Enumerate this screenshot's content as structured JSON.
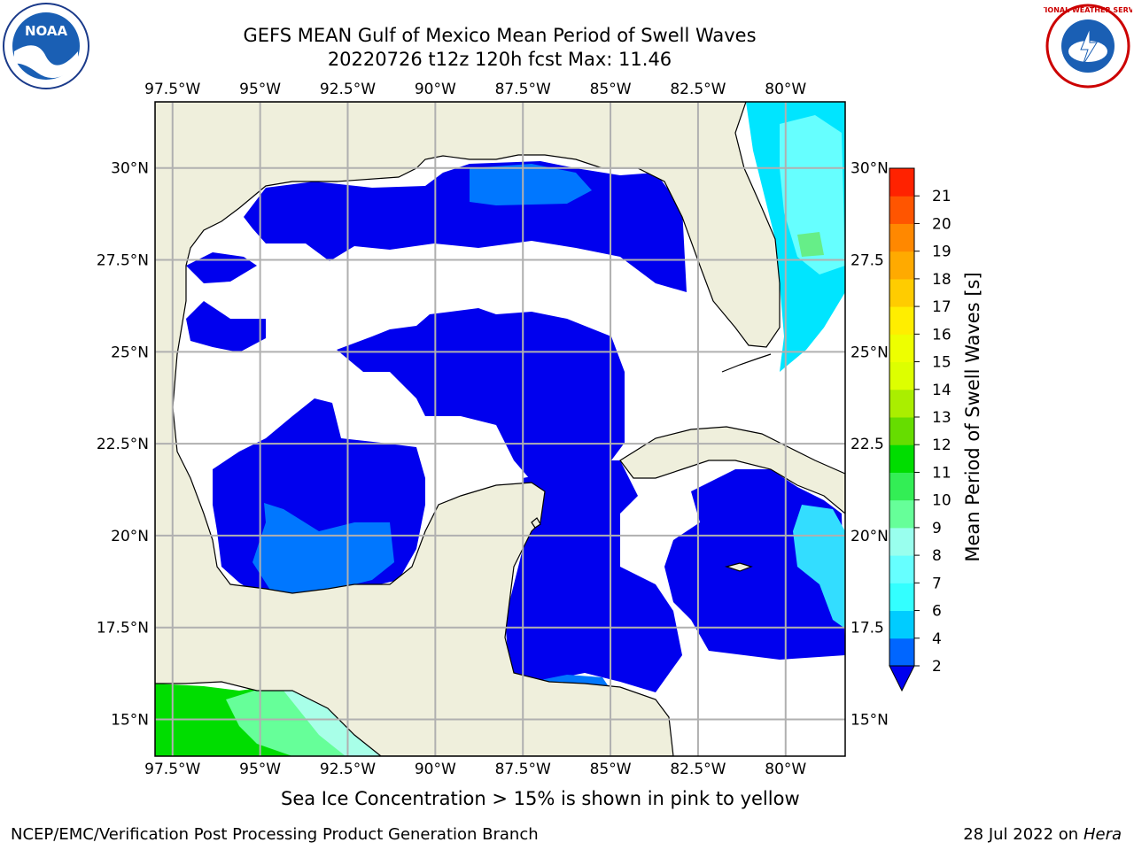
{
  "title": {
    "line1": "GEFS MEAN Gulf of Mexico Mean Period of Swell Waves",
    "line2": "20220726 t12z 120h fcst   Max: 11.46"
  },
  "logos": {
    "left": {
      "name": "noaa-logo",
      "text": "NOAA"
    },
    "right": {
      "name": "nws-logo",
      "text": "NATIONAL WEATHER SERVICE"
    }
  },
  "map": {
    "lon_range": [
      -98,
      -78.3
    ],
    "lat_range": [
      14,
      31.8
    ],
    "lon_ticks": [
      "97.5°W",
      "95°W",
      "92.5°W",
      "90°W",
      "87.5°W",
      "85°W",
      "82.5°W",
      "80°W"
    ],
    "lat_ticks_left": [
      "30°N",
      "27.5°N",
      "25°N",
      "22.5°N",
      "20°N",
      "17.5°N",
      "15°N"
    ],
    "lat_ticks_right": [
      "30°N",
      "27.5",
      "25°N",
      "22.5",
      "20°N",
      "17.5",
      "15°N"
    ],
    "colors": {
      "land": "#efefdc",
      "gridline": "#b0b0b0",
      "coast": "#000000",
      "swell_2_4": "#0000ee",
      "swell_4_6": "#0077ff",
      "swell_6_7": "#00e5ff",
      "swell_7_8": "#66ffff",
      "swell_8_9": "#a8ffe8",
      "swell_9_10": "#66ff99",
      "swell_10_11": "#33ff33",
      "swell_11_12": "#00dd00"
    }
  },
  "colorbar": {
    "label": "Mean Period of Swell Waves [s]",
    "levels": [
      "2",
      "4",
      "6",
      "7",
      "8",
      "9",
      "10",
      "11",
      "12",
      "13",
      "14",
      "15",
      "16",
      "17",
      "18",
      "19",
      "20",
      "21"
    ],
    "colors": [
      "#0066ff",
      "#00ccff",
      "#33ffff",
      "#66ffff",
      "#99ffee",
      "#66ff99",
      "#33ee55",
      "#00dd00",
      "#66dd00",
      "#aaee00",
      "#ddff00",
      "#eeff00",
      "#ffee00",
      "#ffcc00",
      "#ffaa00",
      "#ff8800",
      "#ff5500",
      "#ff2200"
    ],
    "extend_color": "#0000ee"
  },
  "caption": "Sea Ice Concentration > 15% is shown in pink to yellow",
  "footer": {
    "left": "NCEP/EMC/Verification Post Processing Product Generation Branch",
    "right_prefix": "28 Jul 2022 on ",
    "right_host": "Hera"
  }
}
